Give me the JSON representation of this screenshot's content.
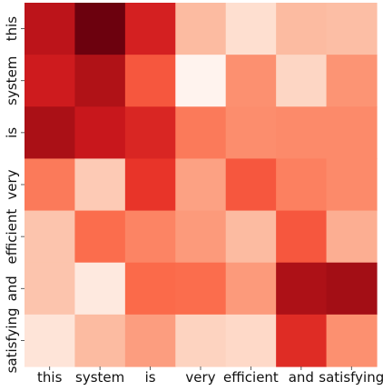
{
  "chart_data": {
    "type": "heatmap",
    "title": "",
    "xlabel": "",
    "ylabel": "",
    "colormap": "Reds",
    "x_categories": [
      "this",
      "system",
      "is",
      "very",
      "efficient",
      "and",
      "satisfying"
    ],
    "y_categories": [
      "this",
      "system",
      "is",
      "very",
      "efficient",
      "and",
      "satisfying"
    ],
    "values": [
      [
        0.8,
        0.99,
        0.72,
        0.25,
        0.13,
        0.25,
        0.24
      ],
      [
        0.74,
        0.84,
        0.55,
        0.01,
        0.38,
        0.16,
        0.37
      ],
      [
        0.86,
        0.76,
        0.7,
        0.45,
        0.39,
        0.4,
        0.4
      ],
      [
        0.45,
        0.2,
        0.65,
        0.33,
        0.55,
        0.43,
        0.4
      ],
      [
        0.22,
        0.49,
        0.42,
        0.35,
        0.25,
        0.55,
        0.29
      ],
      [
        0.22,
        0.07,
        0.5,
        0.49,
        0.35,
        0.85,
        0.88
      ],
      [
        0.1,
        0.25,
        0.34,
        0.17,
        0.15,
        0.68,
        0.38
      ]
    ],
    "colorbar": false
  }
}
